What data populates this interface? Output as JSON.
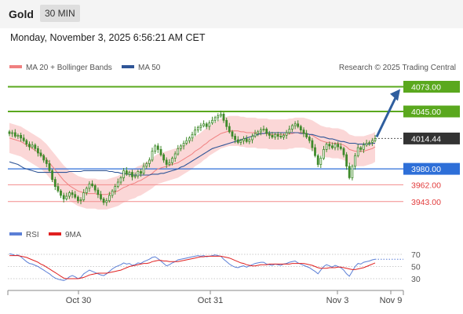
{
  "header": {
    "title": "Gold",
    "timeframe": "30 MIN",
    "datetime": "Monday, November 3, 2025 6:56:21 AM CET"
  },
  "legend": {
    "ma20": "MA 20 + Bollinger Bands",
    "ma50": "MA 50",
    "copyright": "Research © 2025 Trading Central",
    "rsi": "RSI",
    "rsi_ma": "9MA"
  },
  "colors": {
    "candle": "#3f8a2a",
    "ma20": "#f08080",
    "band_fill": "#fbd3d3",
    "ma50": "#2f5597",
    "resistance": "#5aa81e",
    "pivot": "#2e6fd8",
    "support": "#f28b8b",
    "price": "#333333",
    "arrow": "#2f5e9e",
    "rsi": "#5b7fd6",
    "rsi_ma": "#e02020"
  },
  "chart_data": [
    {
      "type": "candlestick",
      "title": "Gold",
      "timeframe": "30 MIN",
      "x_ticks": [
        "Oct 30",
        "Oct 31",
        "Nov 3",
        "Nov 9"
      ],
      "ylim": [
        3925,
        4085
      ],
      "levels": [
        {
          "value": 4073.0,
          "label": "4073.00",
          "kind": "resistance"
        },
        {
          "value": 4045.0,
          "label": "4045.00",
          "kind": "resistance"
        },
        {
          "value": 4014.44,
          "label": "4014.44",
          "kind": "last-price"
        },
        {
          "value": 3980.0,
          "label": "3980.00",
          "kind": "pivot"
        },
        {
          "value": 3962.0,
          "label": "3962.00",
          "kind": "support"
        },
        {
          "value": 3943.0,
          "label": "3943.00",
          "kind": "support"
        }
      ],
      "forecast_target": 4073.0,
      "close_series": [
        4020,
        4021,
        4017,
        4018,
        4015,
        4012,
        4008,
        4005,
        4007,
        4003,
        3998,
        3995,
        3990,
        3986,
        3978,
        3968,
        3960,
        3955,
        3950,
        3946,
        3949,
        3953,
        3951,
        3948,
        3944,
        3945,
        3953,
        3958,
        3963,
        3961,
        3956,
        3951,
        3946,
        3942,
        3944,
        3950,
        3955,
        3960,
        3965,
        3970,
        3978,
        3974,
        3976,
        3971,
        3972,
        3977,
        3975,
        3983,
        3986,
        3990,
        4000,
        4006,
        4002,
        3996,
        3990,
        3985,
        3987,
        3992,
        3997,
        4003,
        4006,
        4009,
        4012,
        4015,
        4019,
        4024,
        4027,
        4029,
        4031,
        4028,
        4032,
        4035,
        4038,
        4040,
        4042,
        4035,
        4028,
        4022,
        4017,
        4013,
        4010,
        4012,
        4014,
        4011,
        4013,
        4017,
        4020,
        4022,
        4024,
        4025,
        4020,
        4018,
        4016,
        4019,
        4017,
        4016,
        4018,
        4021,
        4025,
        4029,
        4031,
        4028,
        4024,
        4020,
        4016,
        4012,
        4004,
        3995,
        3985,
        3992,
        4002,
        4008,
        4006,
        4004,
        4008,
        4005,
        4003,
        3996,
        3983,
        3970,
        3983,
        3995,
        4004,
        4002,
        4007,
        4009,
        4010,
        4012,
        4014.44
      ],
      "ma20_series": [
        4015,
        4014,
        4013,
        4012,
        4011,
        4009,
        4007,
        4005,
        4003,
        4001,
        3999,
        3997,
        3994,
        3991,
        3987,
        3983,
        3979,
        3975,
        3971,
        3967,
        3964,
        3961,
        3959,
        3957,
        3955,
        3954,
        3953,
        3952,
        3952,
        3952,
        3952,
        3951,
        3951,
        3951,
        3951,
        3952,
        3953,
        3954,
        3955,
        3957,
        3959,
        3960,
        3962,
        3963,
        3964,
        3966,
        3967,
        3969,
        3971,
        3973,
        3975,
        3978,
        3980,
        3981,
        3982,
        3983,
        3984,
        3985,
        3986,
        3987,
        3989,
        3991,
        3993,
        3995,
        3997,
        4000,
        4002,
        4004,
        4007,
        4009,
        4012,
        4014,
        4016,
        4018,
        4020,
        4021,
        4022,
        4023,
        4023,
        4023,
        4023,
        4022,
        4022,
        4021,
        4021,
        4021,
        4021,
        4020,
        4020,
        4020,
        4020,
        4019,
        4019,
        4019,
        4019,
        4019,
        4019,
        4019,
        4020,
        4020,
        4021,
        4021,
        4021,
        4021,
        4020,
        4019,
        4018,
        4016,
        4014,
        4012,
        4011,
        4010,
        4010,
        4009,
        4009,
        4009,
        4008,
        4007,
        4005,
        4002,
        4001,
        4000,
        4000,
        4000,
        4000,
        4001,
        4002,
        4003,
        4005
      ],
      "band_width": 17,
      "ma50_series": [
        3988,
        3987,
        3986,
        3985,
        3983,
        3981,
        3980,
        3979,
        3978,
        3977,
        3976,
        3976,
        3976,
        3976,
        3976,
        3976,
        3976,
        3976,
        3976,
        3976,
        3976,
        3977,
        3977,
        3977,
        3977,
        3977,
        3978,
        3978,
        3978,
        3978,
        3978,
        3978,
        3978,
        3978,
        3978,
        3977,
        3977,
        3976,
        3976,
        3975,
        3975,
        3974,
        3974,
        3973,
        3973,
        3973,
        3973,
        3973,
        3973,
        3973,
        3974,
        3974,
        3974,
        3975,
        3975,
        3976,
        3977,
        3978,
        3979,
        3980,
        3982,
        3983,
        3985,
        3987,
        3989,
        3991,
        3993,
        3995,
        3997,
        3999,
        4001,
        4003,
        4004,
        4005,
        4006,
        4007,
        4008,
        4009,
        4010,
        4011,
        4012,
        4013,
        4014,
        4015,
        4016,
        4017,
        4018,
        4019,
        4020,
        4020,
        4021,
        4021,
        4021,
        4021,
        4021,
        4021,
        4021,
        4021,
        4021,
        4021,
        4021,
        4021,
        4020,
        4020,
        4020,
        4019,
        4019,
        4018,
        4017,
        4016,
        4016,
        4015,
        4014,
        4014,
        4013,
        4012,
        4011,
        4011,
        4010,
        4009,
        4009,
        4009,
        4008,
        4008,
        4008,
        4008,
        4008,
        4009,
        4009
      ]
    },
    {
      "type": "line",
      "series": [
        {
          "name": "RSI",
          "values": [
            71,
            70,
            68,
            69,
            66,
            62,
            58,
            55,
            54,
            52,
            50,
            47,
            44,
            41,
            38,
            34,
            31,
            29,
            28,
            27,
            29,
            33,
            35,
            33,
            30,
            32,
            38,
            41,
            44,
            42,
            40,
            38,
            36,
            35,
            38,
            42,
            46,
            49,
            51,
            53,
            56,
            54,
            55,
            52,
            53,
            56,
            55,
            58,
            60,
            62,
            65,
            66,
            63,
            59,
            55,
            51,
            53,
            56,
            58,
            61,
            62,
            63,
            64,
            65,
            66,
            67,
            68,
            67,
            68,
            66,
            67,
            68,
            69,
            68,
            67,
            62,
            58,
            54,
            51,
            49,
            48,
            50,
            51,
            49,
            51,
            53,
            55,
            56,
            57,
            57,
            54,
            53,
            52,
            54,
            53,
            52,
            54,
            55,
            57,
            58,
            59,
            56,
            54,
            52,
            50,
            48,
            45,
            42,
            38,
            44,
            50,
            53,
            51,
            49,
            52,
            50,
            48,
            44,
            38,
            34,
            42,
            50,
            55,
            54,
            57,
            58,
            59,
            61,
            62
          ]
        },
        {
          "name": "9MA",
          "values": [
            68,
            68,
            68,
            68,
            67,
            66,
            65,
            63,
            61,
            59,
            57,
            54,
            52,
            49,
            46,
            43,
            40,
            37,
            34,
            31,
            30,
            30,
            30,
            30,
            30,
            31,
            32,
            34,
            36,
            37,
            38,
            39,
            39,
            39,
            39,
            40,
            41,
            42,
            43,
            44,
            46,
            48,
            50,
            51,
            52,
            53,
            54,
            55,
            55,
            56,
            58,
            59,
            60,
            60,
            59,
            59,
            58,
            58,
            58,
            58,
            59,
            60,
            61,
            62,
            63,
            64,
            65,
            66,
            66,
            67,
            67,
            67,
            67,
            67,
            67,
            66,
            65,
            64,
            62,
            60,
            58,
            56,
            55,
            53,
            52,
            51,
            51,
            52,
            53,
            53,
            53,
            54,
            54,
            54,
            54,
            54,
            54,
            54,
            54,
            55,
            55,
            55,
            55,
            55,
            54,
            53,
            52,
            50,
            48,
            47,
            47,
            47,
            48,
            48,
            48,
            49,
            49,
            48,
            47,
            46,
            45,
            45,
            46,
            47,
            48,
            50,
            52,
            54,
            56
          ]
        }
      ],
      "y_ticks": [
        70,
        50,
        30
      ],
      "ylim": [
        17,
        83
      ],
      "x_ticks": [
        "Oct 30",
        "Oct 31",
        "Nov 3",
        "Nov 9"
      ]
    }
  ]
}
